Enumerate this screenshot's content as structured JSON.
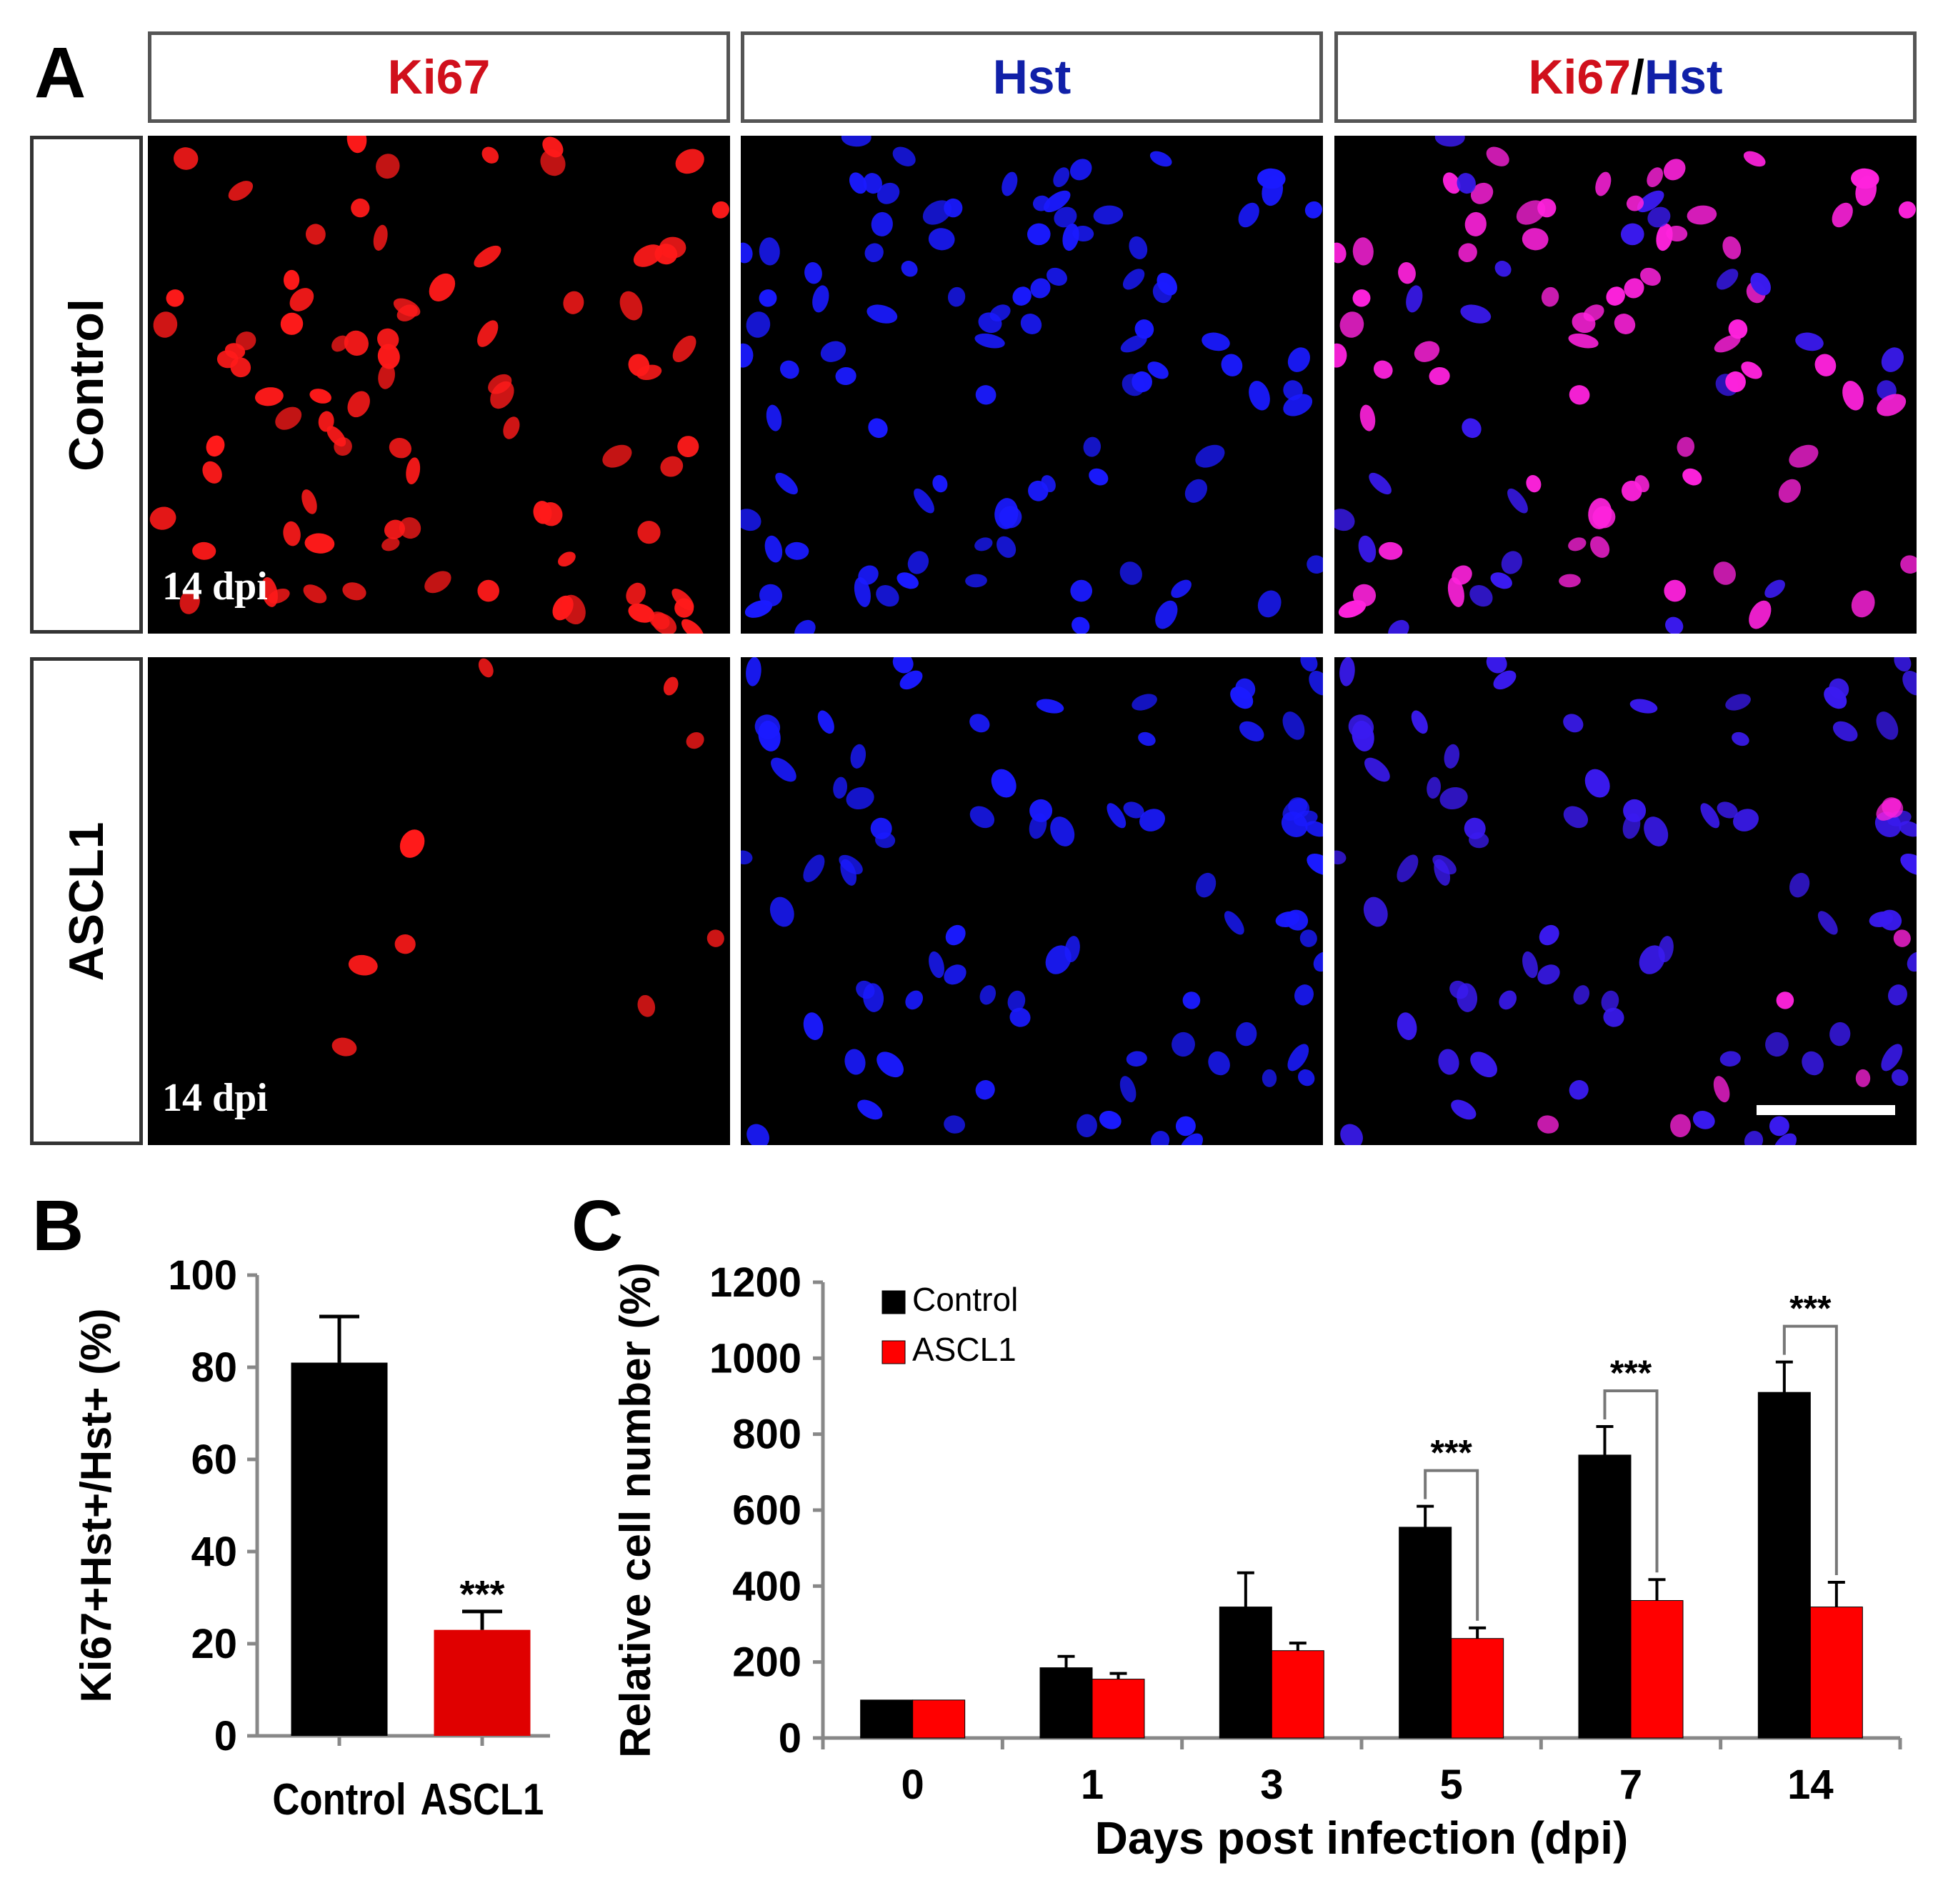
{
  "panel_a": {
    "letter": "A",
    "columns": [
      {
        "parts": [
          {
            "text": "Ki67",
            "color": "#d0101c"
          }
        ]
      },
      {
        "parts": [
          {
            "text": "Hst",
            "color": "#1020a8"
          }
        ]
      },
      {
        "parts": [
          {
            "text": "Ki67",
            "color": "#d0101c"
          },
          {
            "text": "/",
            "color": "#000000"
          },
          {
            "text": "Hst",
            "color": "#1020a8"
          }
        ]
      }
    ],
    "rows": [
      "Control",
      "ASCL1"
    ],
    "timepoint_label": "14 dpi"
  },
  "chart_data": [
    {
      "panel": "B",
      "type": "bar",
      "title": "",
      "xlabel": "",
      "ylabel": "Ki67+Hst+/Hst+ (%)",
      "ylim": [
        0,
        100
      ],
      "yticks": [
        0,
        20,
        40,
        60,
        80,
        100
      ],
      "categories": [
        "Control",
        "ASCL1"
      ],
      "values": [
        81,
        23
      ],
      "errors": [
        10,
        4
      ],
      "colors": [
        "#000000",
        "#e00000"
      ],
      "annotations": [
        {
          "category": "ASCL1",
          "text": "***"
        }
      ]
    },
    {
      "panel": "C",
      "type": "bar",
      "title": "",
      "xlabel": "Days post infection (dpi)",
      "ylabel": "Relative cell number (%)",
      "ylim": [
        0,
        1200
      ],
      "yticks": [
        0,
        200,
        400,
        600,
        800,
        1000,
        1200
      ],
      "categories": [
        "0",
        "1",
        "3",
        "5",
        "7",
        "14"
      ],
      "series": [
        {
          "name": "Control",
          "color": "#000000",
          "values": [
            100,
            185,
            345,
            555,
            745,
            910
          ],
          "errors": [
            0,
            30,
            90,
            55,
            75,
            80
          ]
        },
        {
          "name": "ASCL1",
          "color": "#ff0000",
          "values": [
            100,
            155,
            230,
            262,
            362,
            345
          ],
          "errors": [
            0,
            15,
            20,
            28,
            55,
            65
          ]
        }
      ],
      "legend": {
        "position": "top-left"
      },
      "significance": [
        {
          "category": "5",
          "text": "***"
        },
        {
          "category": "7",
          "text": "***"
        },
        {
          "category": "14",
          "text": "***"
        }
      ]
    }
  ]
}
